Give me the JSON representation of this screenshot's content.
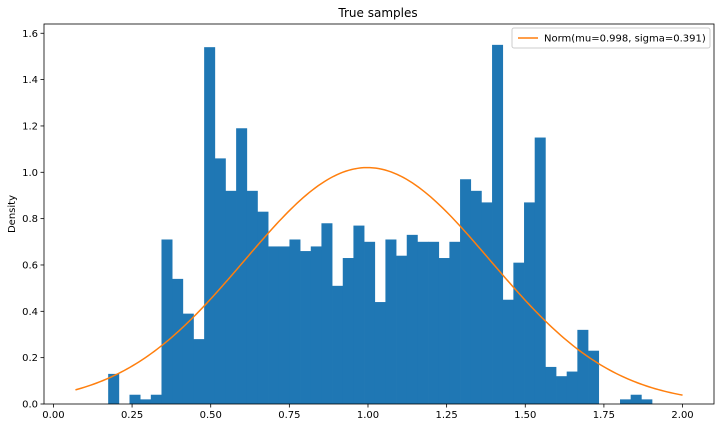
{
  "chart_data": {
    "type": "bar",
    "title": "True samples",
    "xlabel": "",
    "ylabel": "Density",
    "xlim": [
      -0.03,
      2.1
    ],
    "ylim": [
      0.0,
      1.64
    ],
    "xticks": [
      "0.00",
      "0.25",
      "0.50",
      "0.75",
      "1.00",
      "1.25",
      "1.50",
      "1.75",
      "2.00"
    ],
    "yticks": [
      "0.0",
      "0.2",
      "0.4",
      "0.6",
      "0.8",
      "1.0",
      "1.2",
      "1.4",
      "1.6"
    ],
    "bin_start": 0.174,
    "bin_width": 0.0339,
    "histogram": {
      "name": "True samples",
      "color": "#1f77b4",
      "values": [
        0.13,
        0.0,
        0.04,
        0.02,
        0.04,
        0.71,
        0.54,
        0.39,
        0.28,
        1.54,
        1.06,
        0.92,
        1.19,
        0.92,
        0.83,
        0.68,
        0.68,
        0.71,
        0.66,
        0.68,
        0.78,
        0.51,
        0.63,
        0.77,
        0.7,
        0.44,
        0.71,
        0.64,
        0.73,
        0.7,
        0.7,
        0.63,
        0.7,
        0.97,
        0.92,
        0.87,
        1.55,
        0.45,
        0.61,
        0.87,
        1.15,
        0.16,
        0.12,
        0.14,
        0.32,
        0.23,
        0.0,
        0.0,
        0.02,
        0.04,
        0.02
      ]
    },
    "series": [
      {
        "name": "Norm(mu=0.998, sigma=0.391)",
        "color": "#ff7f0e",
        "mu": 0.998,
        "sigma": 0.391,
        "x_range": [
          0.07,
          2.0
        ]
      }
    ],
    "legend_position": "top-right",
    "grid": false
  }
}
